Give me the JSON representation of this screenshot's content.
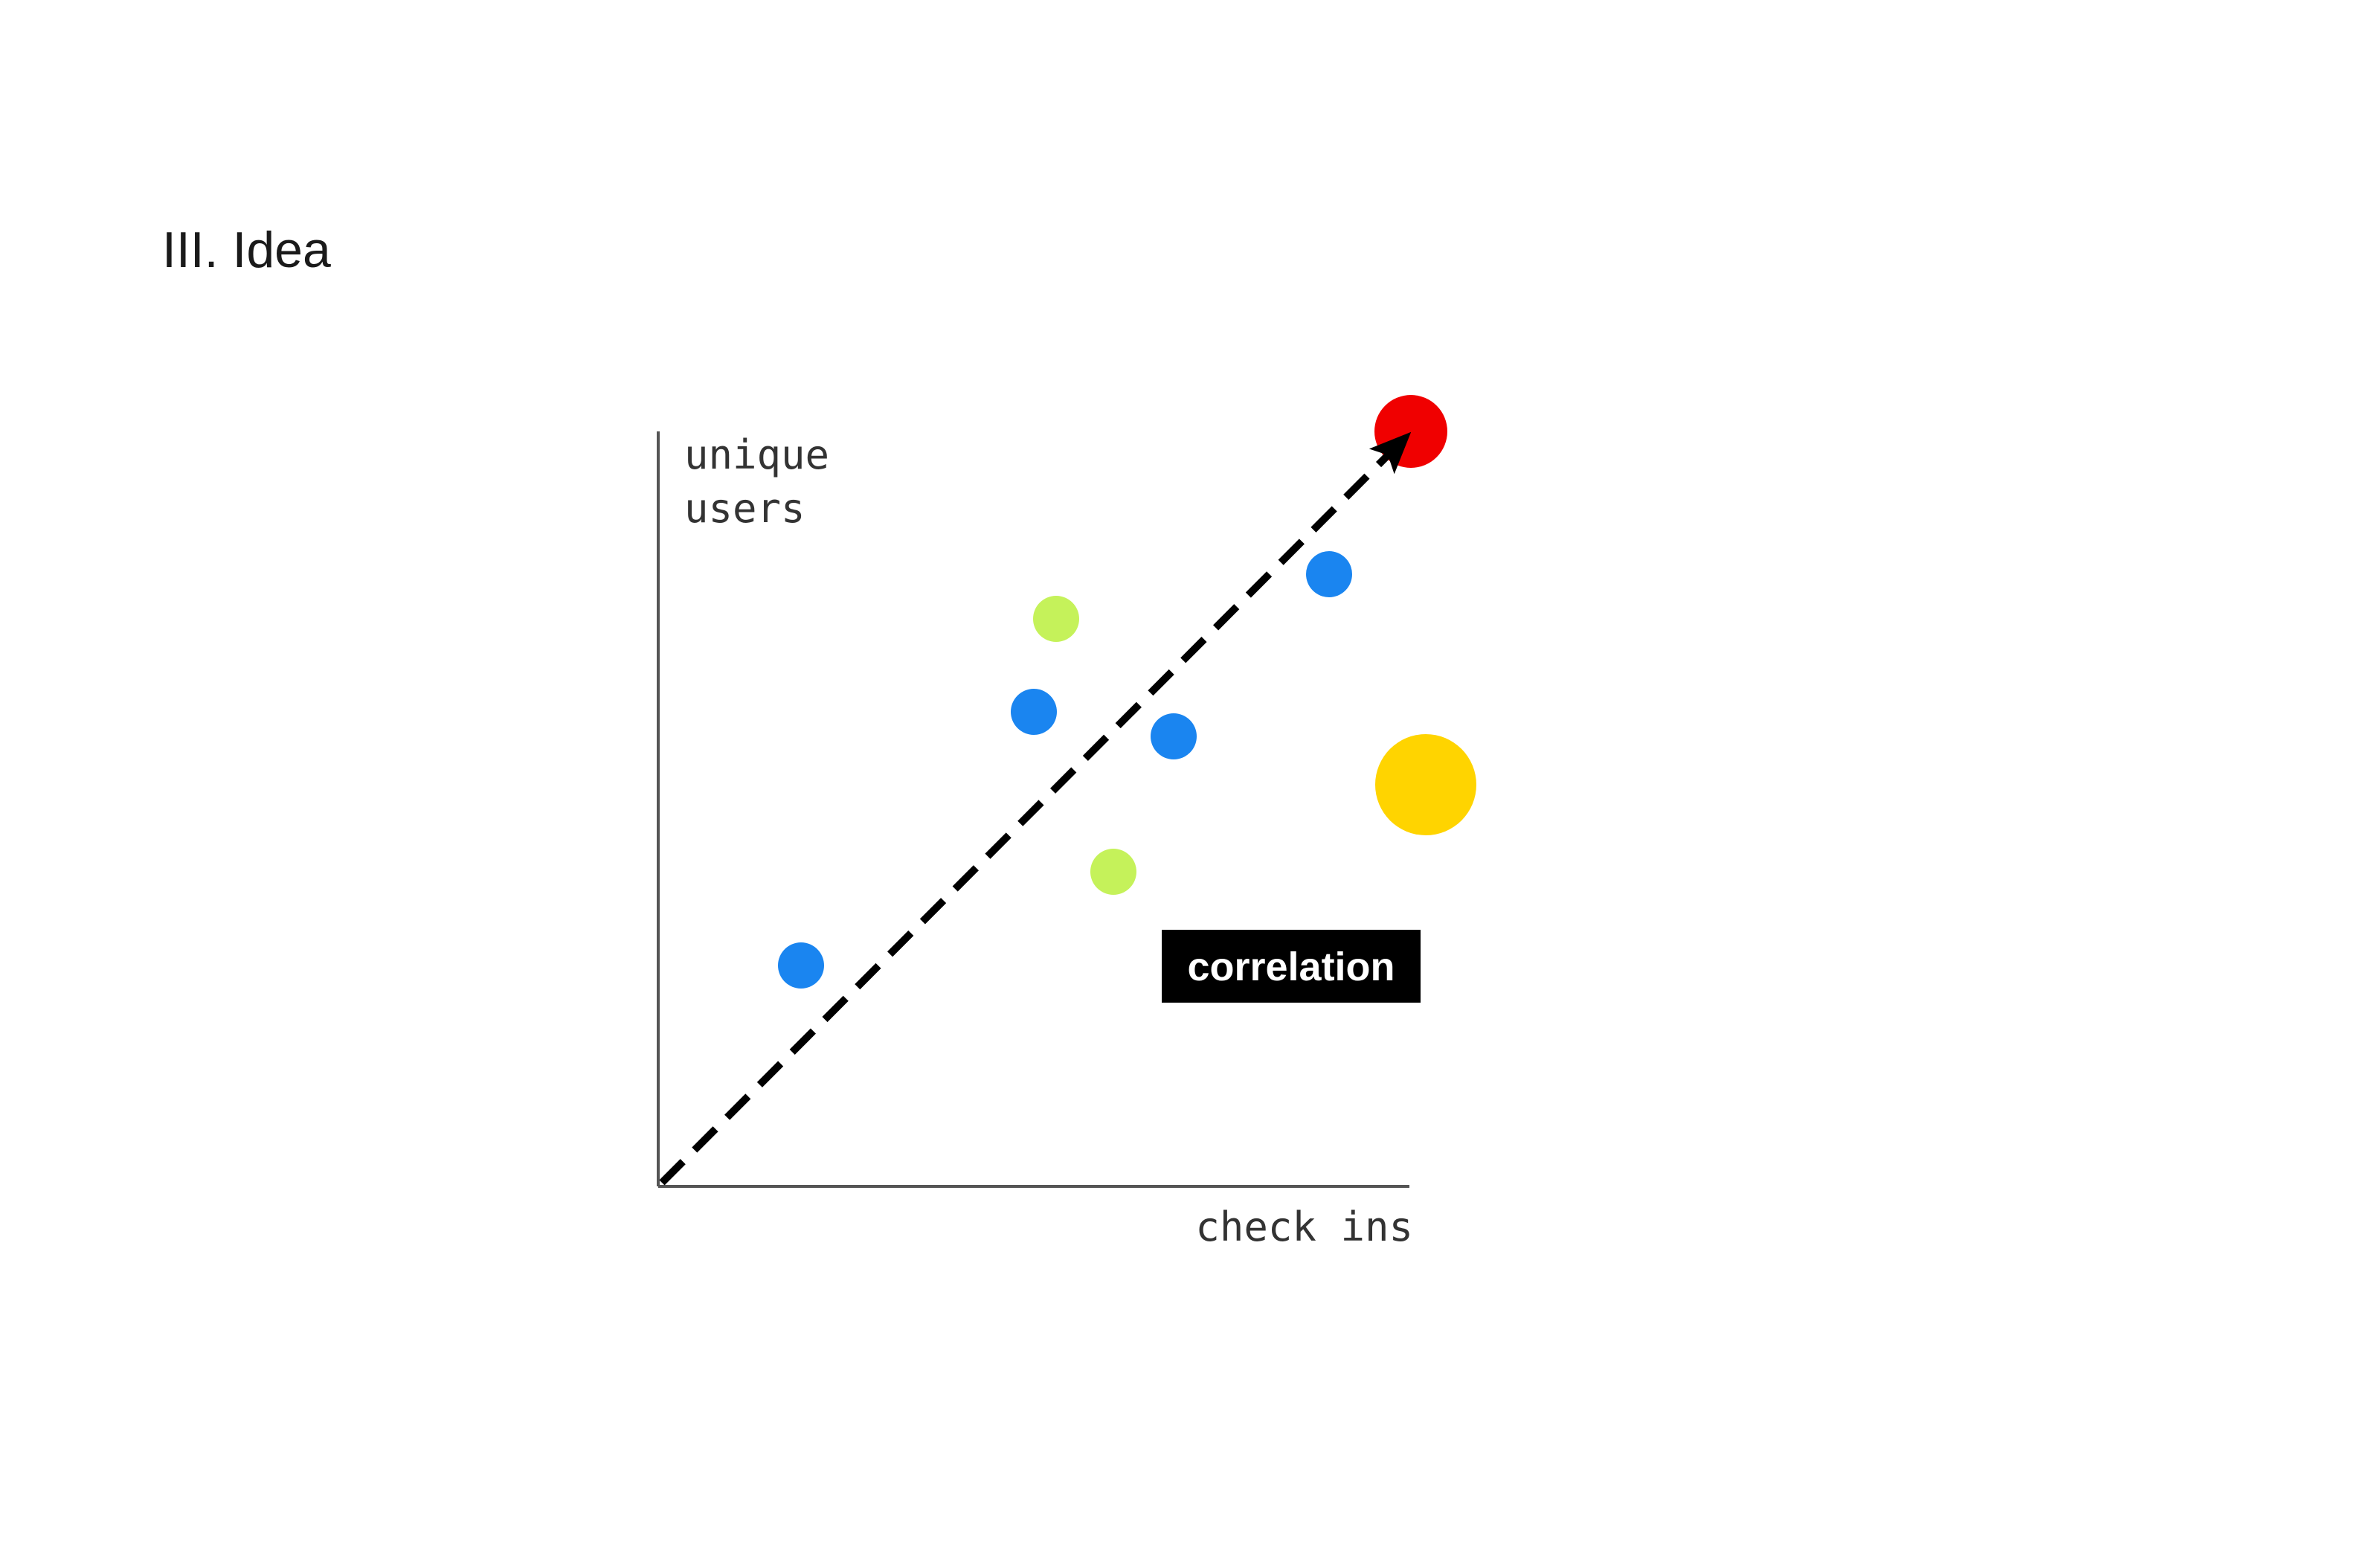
{
  "slide": {
    "title": "III. Idea"
  },
  "diagram": {
    "y_axis_label_lines": [
      "unique",
      "users"
    ],
    "x_axis_label": "check ins",
    "badge_label": "correlation",
    "colors": {
      "axis": "#555555",
      "trend_arrow": "#000000",
      "badge_background": "#000000",
      "badge_text": "#ffffff",
      "blue_point": "#1A85F0",
      "lime_point": "#C5F25A",
      "red_point": "#F00000",
      "yellow_point": "#FFD400"
    }
  }
}
